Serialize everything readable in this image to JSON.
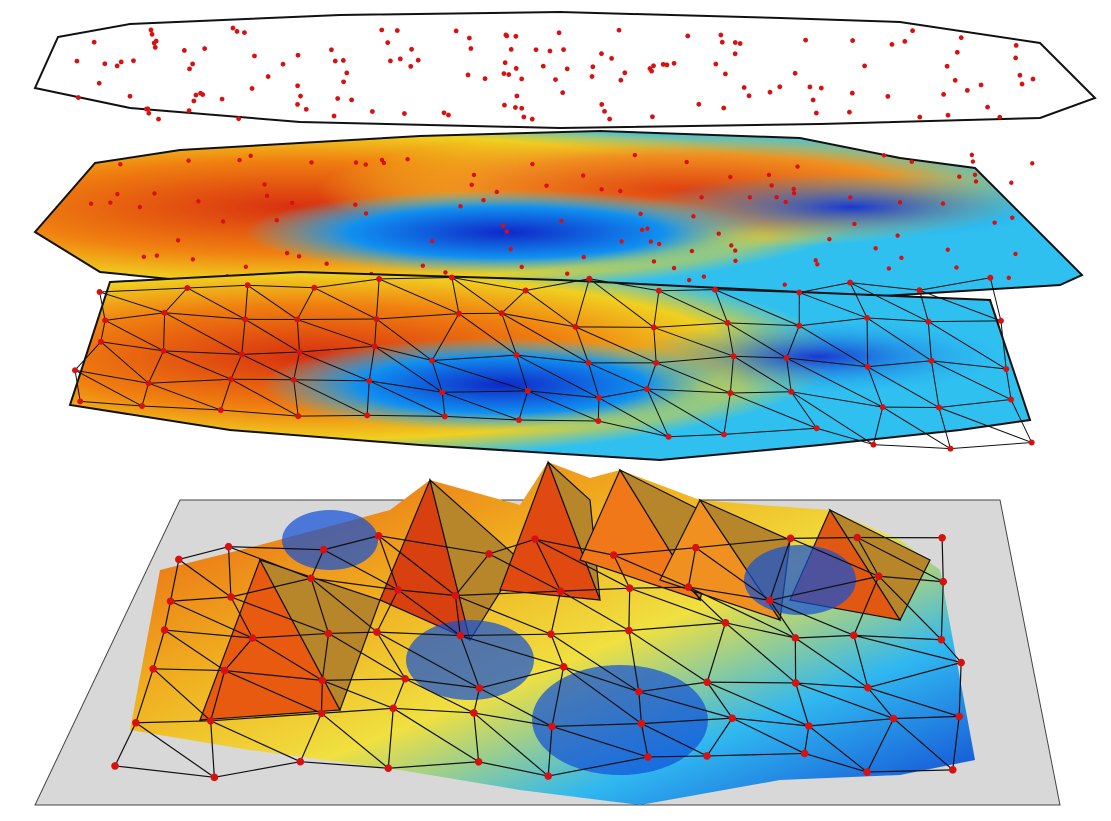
{
  "figure": {
    "layers": [
      {
        "id": "scattered-points-layer",
        "kind": "points"
      },
      {
        "id": "interpolated-surface-layer",
        "kind": "heat-surface"
      },
      {
        "id": "triangulated-mesh-layer",
        "kind": "delaunay-mesh"
      },
      {
        "id": "terrain-surface-layer",
        "kind": "3d-terrain"
      }
    ],
    "colormap": [
      "#1030d0",
      "#10a0f0",
      "#40e0f0",
      "#f0f020",
      "#f0a010",
      "#e84010",
      "#c02808"
    ],
    "point_color": "#d81010",
    "edge_color": "#101010",
    "base_plane_color": "#d8d8d8"
  }
}
